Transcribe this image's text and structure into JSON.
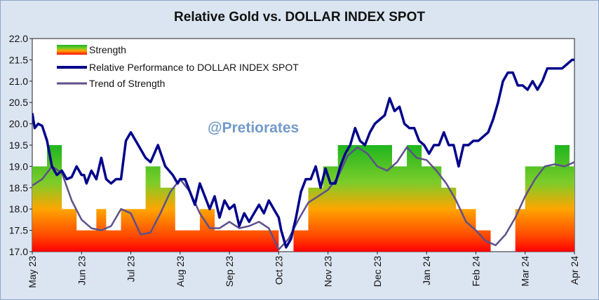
{
  "chart_data": {
    "type": "line",
    "title": "Relative Gold vs. DOLLAR INDEX SPOT",
    "watermark": "@Pretiorates",
    "ylim": [
      17.0,
      22.0
    ],
    "yticks": [
      "17.0",
      "17.5",
      "18.0",
      "18.5",
      "19.0",
      "19.5",
      "20.0",
      "20.5",
      "21.0",
      "21.5",
      "22.0"
    ],
    "x_categories": [
      "May 23",
      "Jun 23",
      "Jul 23",
      "Aug 23",
      "Sep 23",
      "Oct 23",
      "Nov 23",
      "Dec 23",
      "Jan 24",
      "Feb 24",
      "Mar 24",
      "Apr 24"
    ],
    "legend": {
      "placement": "top-left",
      "entries": [
        "Strength",
        "Relative Performance to DOLLAR INDEX SPOT",
        "Trend of Strength"
      ]
    },
    "colors": {
      "performance": "#00008b",
      "trend": "#5e4f8a",
      "strength_top": "#21b821",
      "strength_mid": "#ffa500",
      "strength_bottom": "#ff0000"
    },
    "series": [
      {
        "name": "Relative Performance to DOLLAR INDEX SPOT",
        "x": [
          0,
          0.05,
          0.12,
          0.2,
          0.3,
          0.4,
          0.5,
          0.6,
          0.7,
          0.8,
          0.9,
          1.0,
          1.05,
          1.1,
          1.2,
          1.3,
          1.4,
          1.5,
          1.6,
          1.7,
          1.8,
          1.9,
          2.0,
          2.15,
          2.3,
          2.4,
          2.55,
          2.7,
          2.85,
          2.95,
          3.0,
          3.1,
          3.2,
          3.3,
          3.4,
          3.5,
          3.6,
          3.7,
          3.8,
          3.9,
          4.0,
          4.1,
          4.2,
          4.3,
          4.4,
          4.5,
          4.6,
          4.7,
          4.8,
          4.9,
          5.0,
          5.05,
          5.15,
          5.25,
          5.35,
          5.45,
          5.55,
          5.65,
          5.75,
          5.85,
          5.95,
          6.05,
          6.15,
          6.25,
          6.35,
          6.45,
          6.55,
          6.65,
          6.75,
          6.85,
          6.95,
          7.05,
          7.15,
          7.25,
          7.35,
          7.45,
          7.55,
          7.65,
          7.75,
          7.85,
          7.95,
          8.05,
          8.15,
          8.25,
          8.35,
          8.45,
          8.55,
          8.65,
          8.75,
          8.85,
          8.95,
          9.05,
          9.15,
          9.25,
          9.35,
          9.45,
          9.55,
          9.65,
          9.75,
          9.85,
          9.95,
          10.05,
          10.15,
          10.25,
          10.35,
          10.45,
          10.55,
          10.65,
          10.75,
          10.85,
          10.95,
          11.0
        ],
        "values": [
          20.25,
          19.9,
          20.0,
          19.95,
          19.6,
          19.0,
          18.8,
          18.9,
          18.7,
          18.75,
          19.0,
          18.8,
          18.8,
          18.6,
          18.9,
          18.7,
          19.2,
          18.7,
          18.6,
          18.7,
          18.7,
          19.6,
          19.8,
          19.5,
          19.2,
          19.1,
          19.5,
          19.0,
          18.8,
          18.6,
          18.7,
          18.7,
          18.4,
          18.1,
          18.6,
          18.3,
          18.0,
          18.3,
          17.8,
          18.2,
          18.0,
          18.1,
          17.6,
          17.9,
          17.7,
          17.9,
          18.1,
          17.9,
          18.2,
          18.0,
          17.8,
          17.5,
          17.1,
          17.3,
          17.8,
          18.4,
          18.7,
          18.7,
          19.0,
          18.5,
          18.95,
          18.6,
          18.6,
          19.0,
          19.3,
          19.5,
          19.9,
          19.6,
          19.5,
          19.8,
          20.0,
          20.1,
          20.2,
          20.6,
          20.3,
          20.4,
          20.0,
          19.9,
          19.9,
          19.6,
          19.5,
          19.3,
          19.5,
          19.5,
          19.8,
          19.5,
          19.5,
          19.0,
          19.5,
          19.5,
          19.6,
          19.6,
          19.7,
          19.8,
          20.1,
          20.5,
          21.0,
          21.2,
          21.2,
          20.9,
          20.9,
          20.8,
          21.0,
          20.8,
          21.0,
          21.3,
          21.3,
          21.3,
          21.3,
          21.4,
          21.5,
          21.5
        ]
      },
      {
        "name": "Trend of Strength",
        "x": [
          0,
          0.2,
          0.4,
          0.6,
          0.8,
          1.0,
          1.2,
          1.4,
          1.6,
          1.8,
          2.0,
          2.2,
          2.4,
          2.6,
          2.8,
          3.0,
          3.2,
          3.4,
          3.6,
          3.8,
          4.0,
          4.2,
          4.4,
          4.6,
          4.8,
          5.0,
          5.2,
          5.4,
          5.6,
          5.8,
          6.0,
          6.2,
          6.4,
          6.6,
          6.8,
          7.0,
          7.2,
          7.4,
          7.6,
          7.8,
          8.0,
          8.2,
          8.4,
          8.6,
          8.8,
          9.0,
          9.2,
          9.4,
          9.6,
          9.8,
          10.0,
          10.2,
          10.4,
          10.6,
          10.8,
          11.0
        ],
        "values": [
          18.55,
          18.7,
          19.0,
          18.85,
          18.2,
          17.75,
          17.55,
          17.5,
          17.6,
          18.0,
          17.9,
          17.4,
          17.45,
          17.9,
          18.4,
          18.7,
          18.4,
          17.9,
          17.55,
          17.55,
          17.7,
          17.55,
          17.6,
          17.7,
          17.55,
          17.05,
          17.3,
          17.75,
          18.15,
          18.3,
          18.45,
          18.75,
          19.25,
          19.45,
          19.3,
          19.0,
          18.9,
          19.1,
          19.45,
          19.2,
          19.15,
          18.9,
          18.6,
          18.2,
          17.7,
          17.5,
          17.25,
          17.15,
          17.4,
          17.8,
          18.3,
          18.7,
          19.0,
          19.05,
          19.0,
          19.1
        ]
      },
      {
        "name": "Strength",
        "x": [
          0,
          0.3,
          0.6,
          0.9,
          1.0,
          1.3,
          1.5,
          1.8,
          2.0,
          2.3,
          2.6,
          2.9,
          3.2,
          3.4,
          3.7,
          4.0,
          4.3,
          4.6,
          4.9,
          5.0,
          5.3,
          5.6,
          5.9,
          6.2,
          6.5,
          6.8,
          7.0,
          7.3,
          7.6,
          7.9,
          8.0,
          8.3,
          8.6,
          8.9,
          9.0,
          9.3,
          9.5,
          9.8,
          10.0,
          10.3,
          10.6,
          10.9,
          11.0
        ],
        "values": [
          19.0,
          19.5,
          18.0,
          17.5,
          17.5,
          18.0,
          17.5,
          18.0,
          18.0,
          19.0,
          18.5,
          17.5,
          17.5,
          18.0,
          17.5,
          17.5,
          17.5,
          17.5,
          17.5,
          17.0,
          17.5,
          18.5,
          19.0,
          19.5,
          19.5,
          19.5,
          19.5,
          19.0,
          19.5,
          19.0,
          19.0,
          18.5,
          18.0,
          18.0,
          17.5,
          17.0,
          17.0,
          18.0,
          19.0,
          19.0,
          19.5,
          19.0,
          19.5
        ]
      }
    ]
  }
}
